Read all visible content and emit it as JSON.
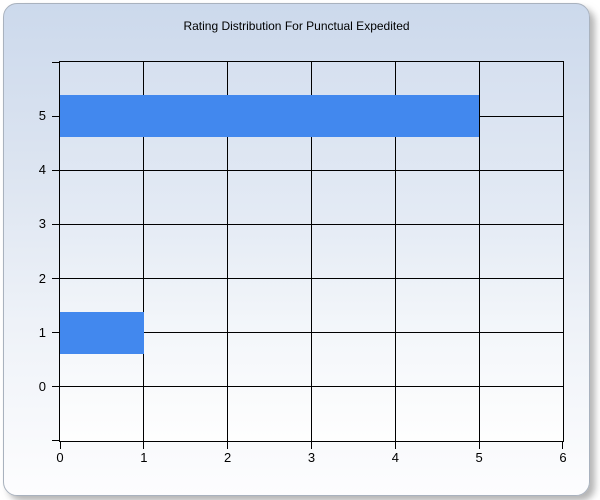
{
  "window": {
    "title": "Rating Distribution For Punctual Expedited"
  },
  "chart_data": {
    "type": "bar",
    "orientation": "horizontal",
    "title": "Rating Distribution For Punctual Expedited",
    "xlabel": "",
    "ylabel": "",
    "categories": [
      0,
      1,
      2,
      3,
      4,
      5
    ],
    "values": [
      0,
      1,
      0,
      0,
      0,
      5
    ],
    "xlim": [
      0,
      6
    ],
    "ylim": [
      -1,
      6
    ],
    "x_ticks": [
      0,
      1,
      2,
      3,
      4,
      5,
      6
    ],
    "y_ticks": [
      0,
      1,
      2,
      3,
      4,
      5
    ],
    "x_gridlines": [
      1,
      2,
      3,
      4,
      5
    ],
    "y_gridlines": [
      0,
      1,
      2,
      3,
      4,
      5
    ],
    "grid": true,
    "legend": false,
    "bar_color": "#4288ee",
    "line_color": "#000000",
    "bar_thickness": 0.78
  }
}
